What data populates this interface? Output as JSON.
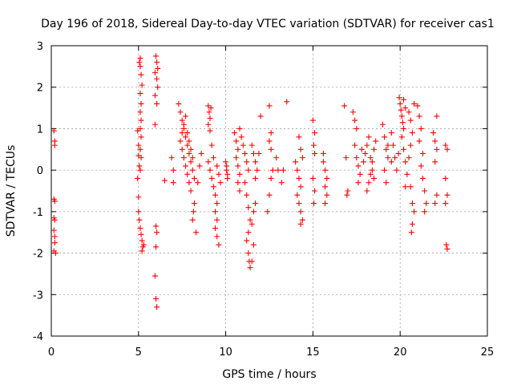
{
  "chart_data": {
    "type": "scatter",
    "title": "Day 196 of 2018, Sidereal Day-to-day VTEC variation (SDTVAR) for receiver cas1",
    "xlabel": "GPS time / hours",
    "ylabel": "SDTVAR / TECUs",
    "xlim": [
      0,
      25
    ],
    "ylim": [
      -4,
      3
    ],
    "xticks": [
      0,
      5,
      10,
      15,
      20,
      25
    ],
    "yticks": [
      -4,
      -3,
      -2,
      -1,
      0,
      1,
      2,
      3
    ],
    "xtick_labels": [
      "0",
      "5",
      "10",
      "15",
      "20",
      "25"
    ],
    "ytick_labels": [
      "-4",
      "-3",
      "-2",
      "-1",
      "0",
      "1",
      "2",
      "3"
    ],
    "grid": true,
    "marker": "+",
    "color": "#ff0000",
    "series": [
      {
        "name": "SDTVAR",
        "points": [
          [
            0.15,
            0.95
          ],
          [
            0.2,
            0.7
          ],
          [
            0.2,
            0.6
          ],
          [
            0.15,
            -0.7
          ],
          [
            0.2,
            -0.75
          ],
          [
            0.15,
            -1.15
          ],
          [
            0.2,
            -1.2
          ],
          [
            0.15,
            -1.45
          ],
          [
            0.2,
            -1.6
          ],
          [
            0.2,
            -1.75
          ],
          [
            0.15,
            -1.95
          ],
          [
            0.25,
            -2.0
          ],
          [
            4.95,
            0.95
          ],
          [
            5.0,
            0.6
          ],
          [
            5.0,
            0.35
          ],
          [
            5.05,
            0.1
          ],
          [
            4.95,
            -0.2
          ],
          [
            5.0,
            -0.65
          ],
          [
            5.05,
            2.6
          ],
          [
            5.1,
            2.7
          ],
          [
            5.1,
            2.5
          ],
          [
            5.15,
            2.3
          ],
          [
            5.2,
            2.05
          ],
          [
            5.1,
            1.85
          ],
          [
            5.15,
            1.6
          ],
          [
            5.1,
            1.4
          ],
          [
            5.15,
            1.2
          ],
          [
            5.1,
            1.0
          ],
          [
            5.15,
            0.8
          ],
          [
            5.1,
            0.5
          ],
          [
            5.15,
            0.3
          ],
          [
            5.1,
            0.0
          ],
          [
            5.0,
            -1.0
          ],
          [
            5.05,
            -1.2
          ],
          [
            5.1,
            -1.4
          ],
          [
            5.15,
            -1.55
          ],
          [
            5.2,
            -1.7
          ],
          [
            5.25,
            -1.85
          ],
          [
            5.2,
            -1.95
          ],
          [
            5.3,
            -1.8
          ],
          [
            6.0,
            2.75
          ],
          [
            6.05,
            2.6
          ],
          [
            6.1,
            2.45
          ],
          [
            5.95,
            2.35
          ],
          [
            6.05,
            2.2
          ],
          [
            6.1,
            2.0
          ],
          [
            5.95,
            1.8
          ],
          [
            6.05,
            1.6
          ],
          [
            5.95,
            1.1
          ],
          [
            6.0,
            -1.35
          ],
          [
            6.05,
            -1.5
          ],
          [
            6.0,
            -1.85
          ],
          [
            5.95,
            -2.55
          ],
          [
            6.0,
            -3.1
          ],
          [
            6.05,
            -3.3
          ],
          [
            6.5,
            -0.25
          ],
          [
            6.9,
            0.3
          ],
          [
            7.0,
            0.0
          ],
          [
            7.0,
            -0.3
          ],
          [
            7.3,
            1.6
          ],
          [
            7.4,
            1.4
          ],
          [
            7.5,
            1.2
          ],
          [
            7.6,
            1.0
          ],
          [
            7.7,
            0.8
          ],
          [
            7.8,
            0.6
          ],
          [
            7.9,
            0.4
          ],
          [
            8.0,
            0.2
          ],
          [
            7.5,
            0.5
          ],
          [
            7.6,
            0.3
          ],
          [
            7.7,
            0.1
          ],
          [
            7.8,
            -0.1
          ],
          [
            7.9,
            -0.3
          ],
          [
            8.0,
            -0.5
          ],
          [
            8.1,
            0.0
          ],
          [
            8.2,
            -0.2
          ],
          [
            7.4,
            0.7
          ],
          [
            7.5,
            0.9
          ],
          [
            7.6,
            1.1
          ],
          [
            7.7,
            1.3
          ],
          [
            7.8,
            0.9
          ],
          [
            7.9,
            0.7
          ],
          [
            8.0,
            0.5
          ],
          [
            8.1,
            0.3
          ],
          [
            8.2,
            -0.8
          ],
          [
            8.15,
            -1.0
          ],
          [
            8.1,
            -1.2
          ],
          [
            8.3,
            -1.5
          ],
          [
            8.4,
            -0.3
          ],
          [
            8.5,
            0.1
          ],
          [
            8.6,
            0.4
          ],
          [
            9.0,
            1.55
          ],
          [
            9.05,
            1.4
          ],
          [
            9.1,
            1.25
          ],
          [
            9.0,
            1.1
          ],
          [
            9.1,
            0.95
          ],
          [
            9.15,
            1.5
          ],
          [
            9.0,
            0.2
          ],
          [
            9.1,
            0.0
          ],
          [
            9.2,
            -0.2
          ],
          [
            9.3,
            -0.4
          ],
          [
            9.4,
            -0.6
          ],
          [
            9.5,
            -0.8
          ],
          [
            9.4,
            -1.0
          ],
          [
            9.5,
            -1.2
          ],
          [
            9.4,
            -1.4
          ],
          [
            9.5,
            -1.6
          ],
          [
            9.6,
            -1.8
          ],
          [
            9.5,
            0.1
          ],
          [
            9.6,
            -0.1
          ],
          [
            9.7,
            -0.3
          ],
          [
            9.2,
            0.6
          ],
          [
            9.3,
            0.3
          ],
          [
            10.0,
            0.2
          ],
          [
            10.05,
            0.0
          ],
          [
            10.1,
            -0.2
          ],
          [
            10.05,
            0.1
          ],
          [
            10.1,
            -0.1
          ],
          [
            10.5,
            0.9
          ],
          [
            10.6,
            0.7
          ],
          [
            10.7,
            0.5
          ],
          [
            10.6,
            0.3
          ],
          [
            10.7,
            0.1
          ],
          [
            10.8,
            -0.1
          ],
          [
            10.7,
            -0.3
          ],
          [
            10.8,
            -0.5
          ],
          [
            10.8,
            1.0
          ],
          [
            10.9,
            0.8
          ],
          [
            11.0,
            0.6
          ],
          [
            11.1,
            0.4
          ],
          [
            11.2,
            0.2
          ],
          [
            11.3,
            0.0
          ],
          [
            11.1,
            -0.3
          ],
          [
            11.2,
            -0.6
          ],
          [
            11.3,
            -0.9
          ],
          [
            11.4,
            -1.2
          ],
          [
            11.3,
            -1.5
          ],
          [
            11.2,
            -1.7
          ],
          [
            11.3,
            -2.0
          ],
          [
            11.35,
            -2.2
          ],
          [
            11.4,
            -2.35
          ],
          [
            11.5,
            -2.2
          ],
          [
            11.6,
            -1.8
          ],
          [
            11.5,
            -1.3
          ],
          [
            11.6,
            -1.0
          ],
          [
            11.7,
            -0.8
          ],
          [
            11.5,
            0.6
          ],
          [
            11.6,
            0.4
          ],
          [
            11.7,
            0.2
          ],
          [
            11.8,
            0.0
          ],
          [
            11.9,
            0.4
          ],
          [
            12.0,
            1.3
          ],
          [
            11.7,
            -0.2
          ],
          [
            12.5,
            1.55
          ],
          [
            12.6,
            0.5
          ],
          [
            12.5,
            0.7
          ],
          [
            12.6,
            0.9
          ],
          [
            12.7,
            0.0
          ],
          [
            12.6,
            -0.2
          ],
          [
            12.5,
            -0.6
          ],
          [
            12.4,
            -1.0
          ],
          [
            12.9,
            0.3
          ],
          [
            13.0,
            0.0
          ],
          [
            13.2,
            -0.3
          ],
          [
            13.5,
            1.65
          ],
          [
            13.3,
            0.0
          ],
          [
            14.0,
            0.2
          ],
          [
            14.1,
            0.0
          ],
          [
            14.2,
            -0.2
          ],
          [
            14.3,
            -0.4
          ],
          [
            14.1,
            -0.6
          ],
          [
            14.2,
            -0.8
          ],
          [
            14.3,
            -1.0
          ],
          [
            14.4,
            -1.2
          ],
          [
            14.2,
            0.8
          ],
          [
            14.3,
            0.5
          ],
          [
            14.4,
            0.3
          ],
          [
            14.3,
            -1.3
          ],
          [
            15.0,
            1.2
          ],
          [
            15.1,
            0.9
          ],
          [
            15.05,
            0.6
          ],
          [
            15.1,
            0.4
          ],
          [
            15.0,
            -0.2
          ],
          [
            15.1,
            -0.5
          ],
          [
            15.05,
            -0.8
          ],
          [
            15.6,
            0.2
          ],
          [
            15.7,
            0.0
          ],
          [
            15.8,
            -0.2
          ],
          [
            15.7,
            -0.4
          ],
          [
            15.8,
            -0.6
          ],
          [
            15.7,
            -0.8
          ],
          [
            15.6,
            0.4
          ],
          [
            16.8,
            1.55
          ],
          [
            16.9,
            0.3
          ],
          [
            16.95,
            -0.6
          ],
          [
            17.0,
            -0.5
          ],
          [
            17.3,
            1.4
          ],
          [
            17.4,
            1.2
          ],
          [
            17.5,
            1.0
          ],
          [
            17.4,
            0.6
          ],
          [
            17.5,
            0.3
          ],
          [
            17.6,
            0.1
          ],
          [
            17.7,
            -0.1
          ],
          [
            17.6,
            -0.3
          ],
          [
            17.8,
            0.5
          ],
          [
            17.9,
            0.2
          ],
          [
            18.0,
            0.4
          ],
          [
            18.1,
            0.6
          ],
          [
            18.2,
            0.8
          ],
          [
            18.3,
            0.3
          ],
          [
            18.4,
            0.0
          ],
          [
            18.5,
            -0.2
          ],
          [
            18.1,
            -0.5
          ],
          [
            18.2,
            -0.3
          ],
          [
            18.3,
            -0.1
          ],
          [
            18.4,
            0.2
          ],
          [
            18.5,
            0.5
          ],
          [
            18.6,
            0.7
          ],
          [
            19.0,
            1.1
          ],
          [
            19.1,
            0.8
          ],
          [
            19.2,
            0.5
          ],
          [
            19.3,
            0.3
          ],
          [
            19.1,
            0.0
          ],
          [
            19.2,
            -0.3
          ],
          [
            19.3,
            0.6
          ],
          [
            19.5,
            0.9
          ],
          [
            19.6,
            0.6
          ],
          [
            19.7,
            0.3
          ],
          [
            19.8,
            0.0
          ],
          [
            19.9,
            0.4
          ],
          [
            19.5,
            0.2
          ],
          [
            19.95,
            1.75
          ],
          [
            20.0,
            1.6
          ],
          [
            20.05,
            1.45
          ],
          [
            20.1,
            1.3
          ],
          [
            20.15,
            1.15
          ],
          [
            20.2,
            1.0
          ],
          [
            20.1,
            0.8
          ],
          [
            20.2,
            0.5
          ],
          [
            20.3,
            0.2
          ],
          [
            20.4,
            -0.1
          ],
          [
            20.3,
            -0.4
          ],
          [
            20.2,
            1.7
          ],
          [
            20.3,
            1.5
          ],
          [
            20.5,
            1.4
          ],
          [
            20.6,
            1.2
          ],
          [
            20.7,
            0.9
          ],
          [
            20.6,
            0.6
          ],
          [
            20.5,
            0.3
          ],
          [
            20.6,
            -0.4
          ],
          [
            20.7,
            -0.8
          ],
          [
            20.8,
            -1.0
          ],
          [
            20.7,
            -1.3
          ],
          [
            20.65,
            -1.5
          ],
          [
            20.8,
            1.6
          ],
          [
            21.0,
            1.55
          ],
          [
            21.1,
            1.3
          ],
          [
            21.2,
            1.0
          ],
          [
            21.1,
            0.7
          ],
          [
            21.3,
            0.4
          ],
          [
            21.2,
            0.1
          ],
          [
            21.3,
            -0.2
          ],
          [
            21.4,
            -0.5
          ],
          [
            21.5,
            -0.8
          ],
          [
            21.4,
            -1.0
          ],
          [
            21.9,
            0.9
          ],
          [
            22.0,
            0.7
          ],
          [
            22.1,
            0.5
          ],
          [
            22.0,
            0.2
          ],
          [
            22.1,
            -0.6
          ],
          [
            22.0,
            -0.8
          ],
          [
            22.1,
            1.3
          ],
          [
            22.6,
            0.6
          ],
          [
            22.7,
            0.5
          ],
          [
            22.6,
            -0.2
          ],
          [
            22.7,
            -0.6
          ],
          [
            22.6,
            -0.8
          ],
          [
            22.65,
            -1.8
          ],
          [
            22.7,
            -1.9
          ]
        ]
      }
    ]
  }
}
